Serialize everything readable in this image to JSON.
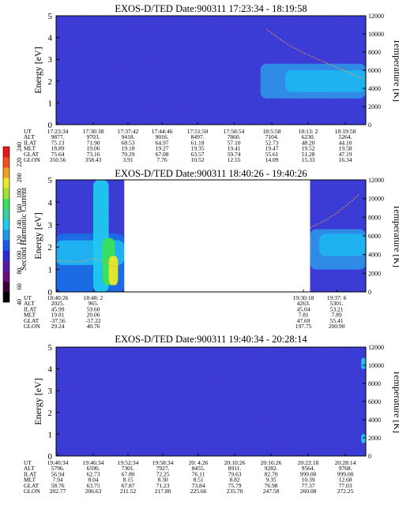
{
  "chart_data": [
    {
      "type": "heatmap",
      "title": "EXOS-D/TED   Date:900311   17:23:34 - 18:19:58",
      "ylabel_left": "Energy [eV]",
      "ylabel_right": "Temperature [K]",
      "ylim_left": [
        0,
        5
      ],
      "ylim_right": [
        0,
        12000
      ],
      "yticks_left": [
        "0",
        "1",
        "2",
        "3",
        "4",
        "5"
      ],
      "yticks_right": [
        "0",
        "2000",
        "4000",
        "6000",
        "8000",
        "10000",
        "12000"
      ],
      "background": "#3b3bd6",
      "data_gaps": [],
      "blobs": [
        {
          "x0": 0.66,
          "x1": 1.0,
          "y0": 1.2,
          "y1": 2.8,
          "color": "#2f8fe8"
        },
        {
          "x0": 0.74,
          "x1": 1.0,
          "y0": 1.5,
          "y1": 2.5,
          "color": "#1fb4f0"
        }
      ],
      "temperature_curve": [
        [
          0.68,
          10500
        ],
        [
          0.72,
          9500
        ],
        [
          0.76,
          8600
        ],
        [
          0.8,
          7900
        ],
        [
          0.84,
          7300
        ],
        [
          0.88,
          6700
        ],
        [
          0.92,
          6100
        ],
        [
          0.96,
          5500
        ],
        [
          1.0,
          5000
        ]
      ],
      "ephemeris": {
        "labels": [
          "UT",
          "ALT",
          "ILAT",
          "MLT",
          "GLAT",
          "GLON"
        ],
        "columns": [
          [
            "17:23:34",
            "9877.",
            "75.13",
            "18.89",
            "75.64",
            "350.56"
          ],
          [
            "17:30:38",
            "9703.",
            "71.90",
            "19.06",
            "73.16",
            "358.43"
          ],
          [
            "17:37:42",
            "9418.",
            "68.53",
            "19.18",
            "70.29",
            "3.91"
          ],
          [
            "17:44:46",
            "9016.",
            "64.97",
            "19.27",
            "67.08",
            "7.76"
          ],
          [
            "17:51:50",
            "8497.",
            "61.18",
            "19.35",
            "63.57",
            "10.52"
          ],
          [
            "17:58:54",
            "7860.",
            "57.10",
            "19.41",
            "59.74",
            "12.55"
          ],
          [
            "18:5:58",
            "7104.",
            "52.73",
            "19.47",
            "55.61",
            "14.09"
          ],
          [
            "18:13: 2",
            "6230.",
            "48.20",
            "19.52",
            "51.28",
            "15.33"
          ],
          [
            "18:19:58",
            "5264.",
            "44.10",
            "19.58",
            "47.19",
            "16.34"
          ]
        ]
      }
    },
    {
      "type": "heatmap",
      "title": "EXOS-D/TED   Date:900311   18:40:26 - 19:40:26",
      "ylabel_left": "Energy [eV]",
      "ylabel_right": "Temperature [K]",
      "ylim_left": [
        0,
        5
      ],
      "ylim_right": [
        0,
        12000
      ],
      "yticks_left": [
        "0",
        "1",
        "2",
        "3",
        "4",
        "5"
      ],
      "yticks_right": [
        "0",
        "2000",
        "4000",
        "6000",
        "8000",
        "10000",
        "12000"
      ],
      "background": "#3b3bd6",
      "data_gaps": [
        [
          0.22,
          0.82
        ]
      ],
      "blobs": [
        {
          "x0": 0.0,
          "x1": 0.22,
          "y0": 0.0,
          "y1": 2.6,
          "color": "#1a6ee6"
        },
        {
          "x0": 0.0,
          "x1": 0.22,
          "y0": 1.2,
          "y1": 2.3,
          "color": "#1fb4f0"
        },
        {
          "x0": 0.12,
          "x1": 0.17,
          "y0": 0.0,
          "y1": 5.0,
          "color": "#20c8f0"
        },
        {
          "x0": 0.15,
          "x1": 0.19,
          "y0": 0.3,
          "y1": 2.4,
          "color": "#39e05a"
        },
        {
          "x0": 0.17,
          "x1": 0.2,
          "y0": 0.3,
          "y1": 1.6,
          "color": "#e8e82a"
        },
        {
          "x0": 0.82,
          "x1": 1.0,
          "y0": 1.0,
          "y1": 2.8,
          "color": "#2f8fe8"
        },
        {
          "x0": 0.85,
          "x1": 1.0,
          "y0": 1.6,
          "y1": 2.6,
          "color": "#1fb4f0"
        }
      ],
      "temperature_curve": [
        [
          0.0,
          3300
        ],
        [
          0.04,
          3300
        ],
        [
          0.08,
          3200
        ],
        [
          0.12,
          3600
        ],
        [
          0.16,
          3200
        ],
        [
          0.19,
          2600
        ]
      ],
      "temperature_curve_2": [
        [
          0.82,
          6900
        ],
        [
          0.86,
          7500
        ],
        [
          0.9,
          8300
        ],
        [
          0.94,
          9300
        ],
        [
          0.98,
          10500
        ]
      ],
      "ephemeris": {
        "labels": [
          "UT",
          "ALT",
          "ILAT",
          "MLT",
          "GLAT",
          "GLON"
        ],
        "columns": [
          [
            "18:40:26",
            "2025.",
            "45.99",
            "19.81",
            "-37.56",
            "29.24"
          ],
          [
            "18:48: 2",
            "965.",
            "59.60",
            "20.06",
            "-57.22",
            "40.76"
          ],
          [
            "19:30:18",
            "4263.",
            "45.04",
            "7.81",
            "47.69",
            "197.75"
          ],
          [
            "19:37: 6",
            "5301.",
            "53.21",
            "7.89",
            "55.41",
            "200.90"
          ]
        ]
      },
      "colorbar": {
        "label": "Second Harmonic Current",
        "ticks": [
          "40",
          "60",
          "80",
          "100",
          "120",
          "140",
          "160",
          "180",
          "200",
          "220",
          "240"
        ],
        "colors": [
          "#000000",
          "#3a003a",
          "#6a0d7d",
          "#5a1aa8",
          "#2a2ad8",
          "#1a5ae8",
          "#1a9ae8",
          "#20c8f0",
          "#39d0a0",
          "#39e05a",
          "#a0e030",
          "#e8e82a",
          "#f0a020",
          "#f05020",
          "#e81818"
        ]
      }
    },
    {
      "type": "heatmap",
      "title": "EXOS-D/TED   Date:900311   19:40:34 - 20:28:14",
      "ylabel_left": "Energy [eV]",
      "ylabel_right": "Temperature [K]",
      "ylim_left": [
        0,
        5
      ],
      "ylim_right": [
        0,
        12000
      ],
      "yticks_left": [
        "0",
        "1",
        "2",
        "3",
        "4",
        "5"
      ],
      "yticks_right": [
        "0",
        "2000",
        "4000",
        "6000",
        "8000",
        "10000",
        "12000"
      ],
      "background": "#3b3bd6",
      "data_gaps": [],
      "blobs": [
        {
          "x0": 0.985,
          "x1": 1.0,
          "y0": 4.0,
          "y1": 4.5,
          "color": "#20c8f0"
        },
        {
          "x0": 0.985,
          "x1": 1.0,
          "y0": 0.6,
          "y1": 1.0,
          "color": "#20c8f0"
        }
      ],
      "temperature_curve": [],
      "ephemeris": {
        "labels": [
          "UT",
          "ALT",
          "ILAT",
          "MLT",
          "GLAT",
          "GLON"
        ],
        "columns": [
          [
            "19:40:34",
            "5796.",
            "56.94",
            "7.94",
            "58.76",
            "202.77"
          ],
          [
            "19:46:34",
            "6590.",
            "62.73",
            "8.04",
            "63.75",
            "206.63"
          ],
          [
            "19:52:34",
            "7301.",
            "67.80",
            "8.15",
            "67.87",
            "211.52"
          ],
          [
            "19:58:34",
            "7927.",
            "72.25",
            "8.30",
            "71.23",
            "217.80"
          ],
          [
            "20: 4:26",
            "8455.",
            "76.11",
            "8.51",
            "73.84",
            "225.66"
          ],
          [
            "20:10:26",
            "8911.",
            "79.63",
            "8.82",
            "75.79",
            "235.70"
          ],
          [
            "20:16:26",
            "9282.",
            "82.70",
            "9.35",
            "76.98",
            "247.58"
          ],
          [
            "20:22:18",
            "9564.",
            "999.00",
            "10.39",
            "77.37",
            "260.08"
          ],
          [
            "20:28:14",
            "9768.",
            "999.00",
            "12.68",
            "77.03",
            "272.25"
          ]
        ]
      }
    }
  ]
}
